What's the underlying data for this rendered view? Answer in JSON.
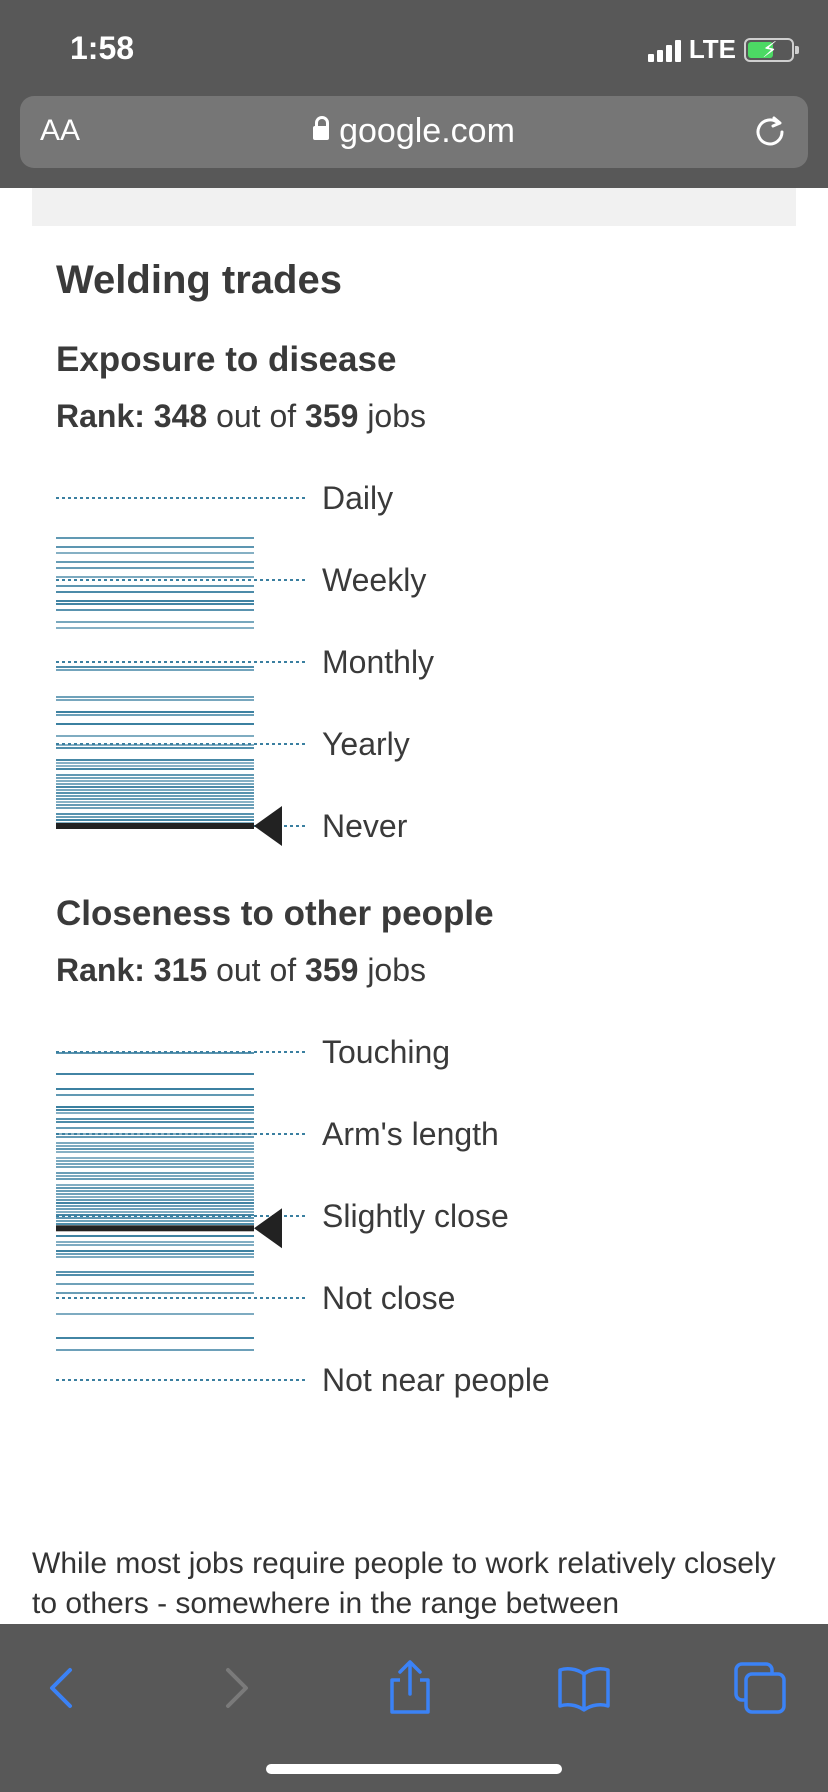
{
  "status_bar": {
    "time": "1:58",
    "network": "LTE"
  },
  "address_bar": {
    "text_size_label": "AA",
    "domain": "google.com"
  },
  "article": {
    "title": "Welding trades",
    "sections": [
      {
        "heading": "Exposure to disease",
        "rank_label": "Rank:",
        "rank": "348",
        "out_of": "out of",
        "total": "359",
        "jobs": "jobs",
        "categories": [
          "Daily",
          "Weekly",
          "Monthly",
          "Yearly",
          "Never"
        ],
        "marker_position": "Never"
      },
      {
        "heading": "Closeness to other people",
        "rank_label": "Rank:",
        "rank": "315",
        "out_of": "out of",
        "total": "359",
        "jobs": "jobs",
        "categories": [
          "Touching",
          "Arm's length",
          "Slightly close",
          "Not close",
          "Not near people"
        ],
        "marker_position": "Slightly close"
      }
    ],
    "body_text": "While most jobs require people to work relatively closely to others - somewhere in the range between"
  },
  "chart_data": [
    {
      "type": "bar",
      "title": "Exposure to disease",
      "categories": [
        "Daily",
        "Weekly",
        "Monthly",
        "Yearly",
        "Never"
      ],
      "marker": {
        "label": "Welding trades",
        "value": 0.0
      },
      "scale": [
        4,
        3,
        2,
        1,
        0
      ],
      "density_profile": [
        0,
        0.3,
        0.25,
        0.5,
        0.9
      ]
    },
    {
      "type": "bar",
      "title": "Closeness to other people",
      "categories": [
        "Touching",
        "Arm's length",
        "Slightly close",
        "Not close",
        "Not near people"
      ],
      "marker": {
        "label": "Welding trades",
        "value": 1.85
      },
      "scale": [
        4,
        3,
        2,
        1,
        0
      ],
      "density_profile": [
        0.3,
        0.8,
        0.9,
        0.3,
        0
      ]
    }
  ],
  "colors": {
    "bar": "#3a7fa0",
    "marker": "#222222",
    "topbar": "#585858",
    "toolbar_icon": "#3b82f6"
  },
  "toolbar": {
    "icons": [
      "back-icon",
      "forward-icon",
      "share-icon",
      "bookmarks-icon",
      "tabs-icon"
    ]
  }
}
